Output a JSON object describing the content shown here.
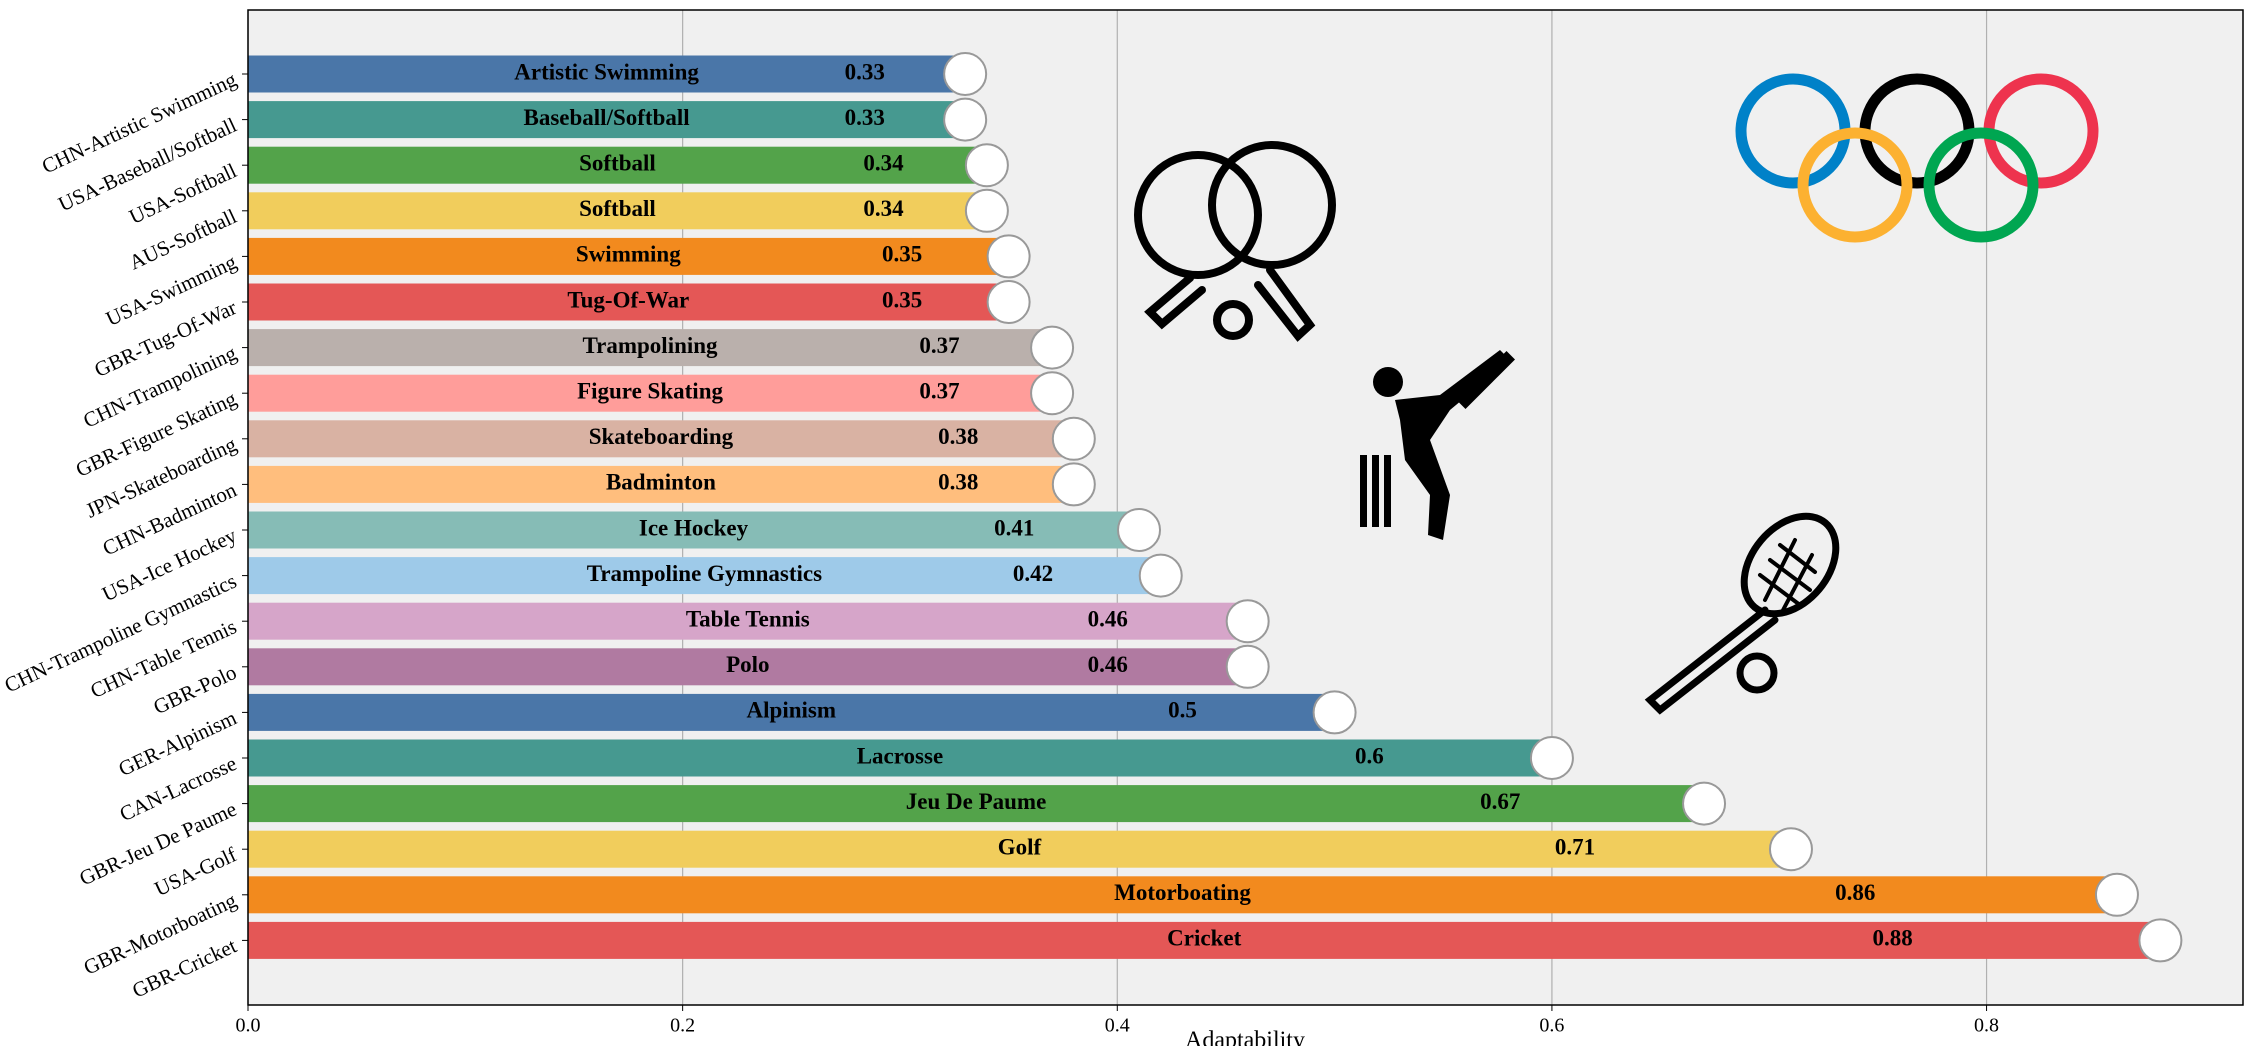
{
  "chart_data": {
    "type": "barh",
    "categories": [
      "CHN-Artistic Swimming",
      "USA-Baseball/Softball",
      "USA-Softball",
      "AUS-Softball",
      "USA-Swimming",
      "GBR-Tug-Of-War",
      "CHN-Trampolining",
      "GBR-Figure Skating",
      "JPN-Skateboarding",
      "CHN-Badminton",
      "USA-Ice Hockey",
      "CHN-Trampoline Gymnastics",
      "CHN-Table Tennis",
      "GBR-Polo",
      "GER-Alpinism",
      "CAN-Lacrosse",
      "GBR-Jeu De Paume",
      "USA-Golf",
      "GBR-Motorboating",
      "GBR-Cricket"
    ],
    "bar_labels": [
      "Artistic Swimming",
      "Baseball/Softball",
      "Softball",
      "Softball",
      "Swimming",
      "Tug-Of-War",
      "Trampolining",
      "Figure Skating",
      "Skateboarding",
      "Badminton",
      "Ice Hockey",
      "Trampoline Gymnastics",
      "Table Tennis",
      "Polo",
      "Alpinism",
      "Lacrosse",
      "Jeu De Paume",
      "Golf",
      "Motorboating",
      "Cricket"
    ],
    "values": [
      0.33,
      0.33,
      0.34,
      0.34,
      0.35,
      0.35,
      0.37,
      0.37,
      0.38,
      0.38,
      0.41,
      0.42,
      0.46,
      0.46,
      0.5,
      0.6,
      0.67,
      0.71,
      0.86,
      0.88
    ],
    "colors": [
      "#4a76a8",
      "#469990",
      "#53a34a",
      "#f1cd5c",
      "#f28a1e",
      "#e45756",
      "#bab0ac",
      "#ff9d9a",
      "#d9b2a3",
      "#ffbe7d",
      "#86bcb6",
      "#9ecae9",
      "#d6a5c9",
      "#b07aa1",
      "#4a76a8",
      "#469990",
      "#53a34a",
      "#f1cd5c",
      "#f28a1e",
      "#e45756"
    ],
    "xlabel": "Adaptability",
    "xlim": [
      0,
      0.918
    ],
    "xticks": [
      {
        "value": 0,
        "label": "0.0"
      },
      0.2,
      0.4,
      0.6,
      0.8
    ],
    "grid": true
  }
}
